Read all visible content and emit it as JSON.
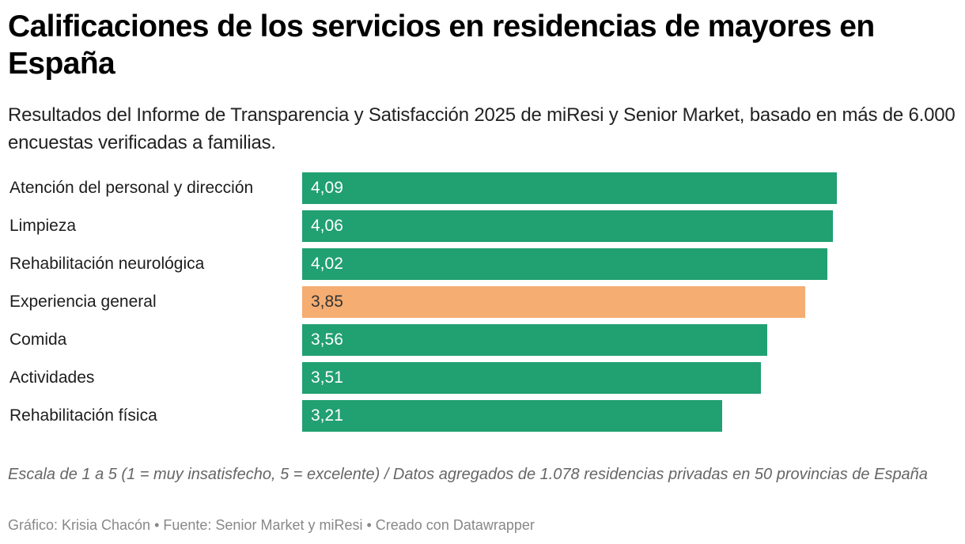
{
  "header": {
    "title": "Calificaciones de los servicios en residencias de mayores en España",
    "subtitle": "Resultados del Informe de Transparencia y Satisfacción 2025 de miResi y Senior Market, basado en más de 6.000 encuestas verificadas a familias."
  },
  "colors": {
    "default_bar": "#21a071",
    "highlight_bar": "#f5ad72",
    "label_on_default": "#ffffff",
    "label_on_highlight": "#333333"
  },
  "chart_data": {
    "type": "bar",
    "orientation": "horizontal",
    "title": "Calificaciones de los servicios en residencias de mayores en España",
    "xlabel": "",
    "ylabel": "",
    "xlim": [
      0,
      4.09
    ],
    "grid": false,
    "legend": "none",
    "categories": [
      "Atención del personal y dirección",
      "Limpieza",
      "Rehabilitación neurológica",
      "Experiencia general",
      "Comida",
      "Actividades",
      "Rehabilitación física"
    ],
    "values": [
      4.09,
      4.06,
      4.02,
      3.85,
      3.56,
      3.51,
      3.21
    ],
    "value_labels": [
      "4,09",
      "4,06",
      "4,02",
      "3,85",
      "3,56",
      "3,51",
      "3,21"
    ],
    "highlighted": [
      false,
      false,
      false,
      true,
      false,
      false,
      false
    ]
  },
  "footer": {
    "notes": "Escala de 1 a 5 (1 = muy insatisfecho, 5 = excelente) / Datos agregados de 1.078 residencias privadas en 50 provincias de España",
    "byline": "Gráfico: Krisia Chacón • Fuente: Senior Market y miResi • Creado con Datawrapper"
  }
}
